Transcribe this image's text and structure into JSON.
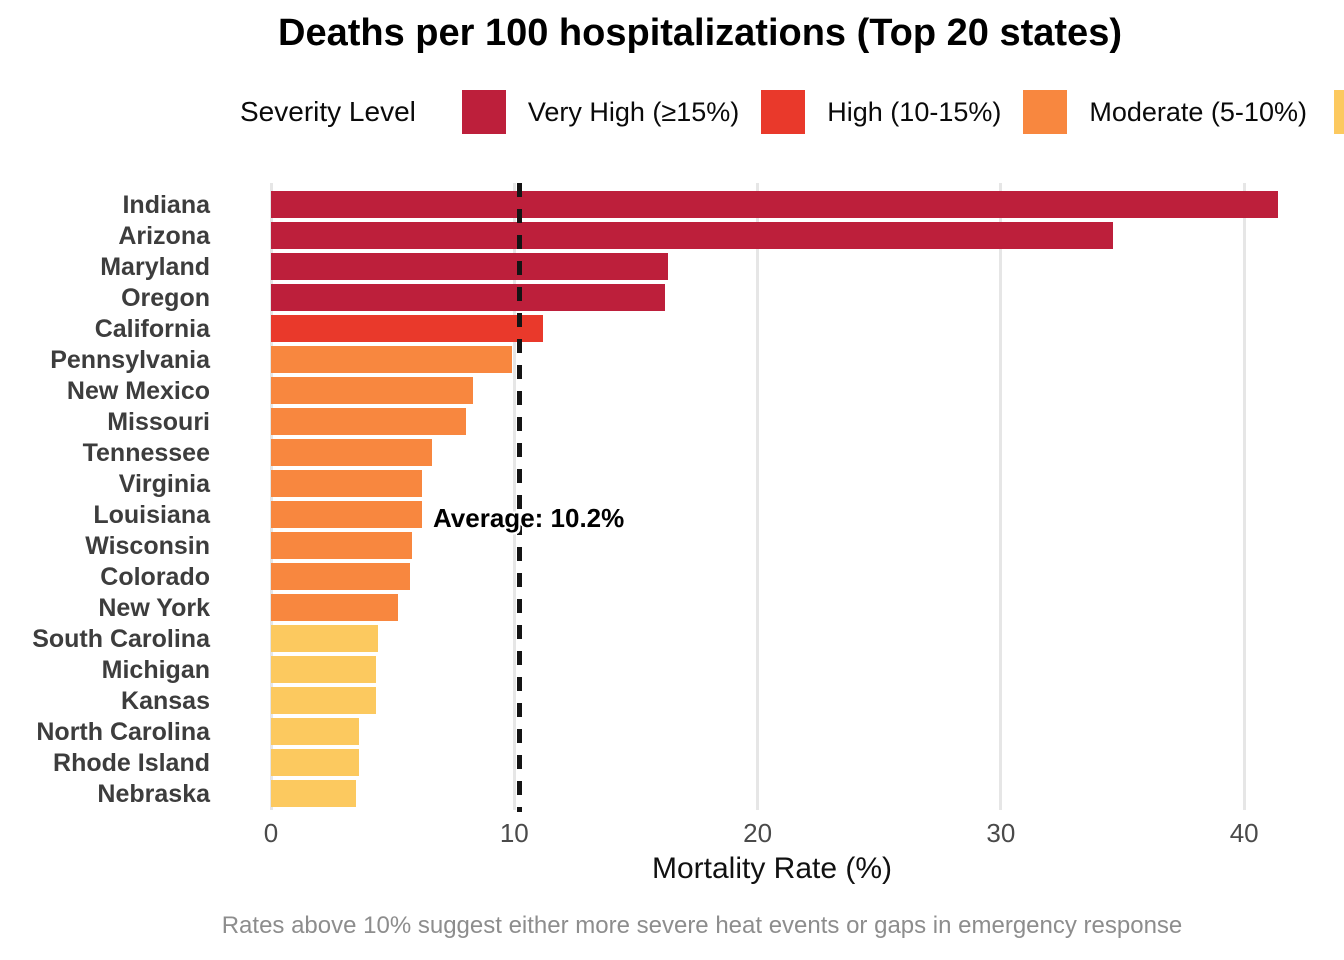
{
  "title": "Deaths per 100 hospitalizations (Top 20 states)",
  "legend": {
    "title": "Severity Level",
    "items": [
      {
        "key": "very_high",
        "label": "Very High (≥15%)",
        "color": "#BD1F3B",
        "clipped": false
      },
      {
        "key": "high",
        "label": "High (10-15%)",
        "color": "#E9392B",
        "clipped": false
      },
      {
        "key": "moderate",
        "label": "Moderate (5-10%)",
        "color": "#F8873F",
        "clipped": false
      },
      {
        "key": "low",
        "label": "",
        "color": "#FCC95F",
        "clipped": true
      }
    ]
  },
  "chart_data": {
    "type": "bar",
    "orientation": "horizontal",
    "title": "Deaths per 100 hospitalizations (Top 20 states)",
    "xlabel": "Mortality Rate (%)",
    "ylabel": "",
    "x_ticks": [
      0,
      10,
      20,
      30,
      40
    ],
    "xlim": [
      0,
      43.5
    ],
    "grid": "major-x-only",
    "categories": [
      "Indiana",
      "Arizona",
      "Maryland",
      "Oregon",
      "California",
      "Pennsylvania",
      "New Mexico",
      "Missouri",
      "Tennessee",
      "Virginia",
      "Louisiana",
      "Wisconsin",
      "Colorado",
      "New York",
      "South Carolina",
      "Michigan",
      "Kansas",
      "North Carolina",
      "Rhode Island",
      "Nebraska"
    ],
    "values": [
      41.4,
      34.6,
      16.3,
      16.2,
      11.2,
      9.9,
      8.3,
      8.0,
      6.6,
      6.2,
      6.2,
      5.8,
      5.7,
      5.2,
      4.4,
      4.3,
      4.3,
      3.6,
      3.6,
      3.5
    ],
    "severities": [
      "very_high",
      "very_high",
      "very_high",
      "very_high",
      "high",
      "moderate",
      "moderate",
      "moderate",
      "moderate",
      "moderate",
      "moderate",
      "moderate",
      "moderate",
      "moderate",
      "low",
      "low",
      "low",
      "low",
      "low",
      "low"
    ],
    "colors": {
      "very_high": "#BD1F3B",
      "high": "#E9392B",
      "moderate": "#F8873F",
      "low": "#FCC95F"
    },
    "average_line": {
      "value": 10.2,
      "label": "Average: 10.2%",
      "style": "dashed",
      "color": "#141414"
    },
    "legend_position": "top"
  },
  "caption": "Rates above 10% suggest either more severe heat events or gaps in emergency response"
}
